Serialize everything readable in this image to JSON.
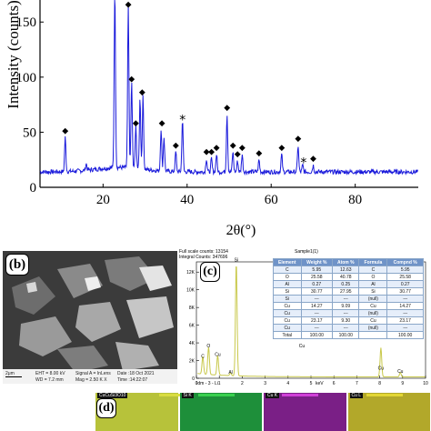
{
  "chart_data": {
    "type": "line",
    "xlabel": "2θ(°)",
    "ylabel": "Intensity (counts)",
    "xlim": [
      5,
      95
    ],
    "ylim": [
      0,
      170
    ],
    "x_ticks": [
      "20",
      "40",
      "60",
      "80"
    ],
    "y_ticks": [
      "0",
      "50",
      "100",
      "150"
    ],
    "line_color": "#1a1adb",
    "baseline": 14,
    "peaks": [
      {
        "x": 11.0,
        "y": 45
      },
      {
        "x": 16.0,
        "y": 20
      },
      {
        "x": 22.8,
        "y": 178
      },
      {
        "x": 26.0,
        "y": 160
      },
      {
        "x": 26.8,
        "y": 92
      },
      {
        "x": 27.8,
        "y": 52
      },
      {
        "x": 28.8,
        "y": 78
      },
      {
        "x": 29.5,
        "y": 80
      },
      {
        "x": 33.8,
        "y": 52
      },
      {
        "x": 34.5,
        "y": 45
      },
      {
        "x": 37.3,
        "y": 32
      },
      {
        "x": 38.9,
        "y": 62
      },
      {
        "x": 44.6,
        "y": 26
      },
      {
        "x": 45.8,
        "y": 26
      },
      {
        "x": 47.0,
        "y": 30
      },
      {
        "x": 49.5,
        "y": 66
      },
      {
        "x": 50.9,
        "y": 32
      },
      {
        "x": 52.0,
        "y": 24
      },
      {
        "x": 53.1,
        "y": 30
      },
      {
        "x": 57.1,
        "y": 25
      },
      {
        "x": 62.5,
        "y": 30
      },
      {
        "x": 66.4,
        "y": 38
      },
      {
        "x": 67.5,
        "y": 20
      },
      {
        "x": 70.0,
        "y": 20
      }
    ],
    "markers": [
      {
        "symbol": "◆",
        "x": 11.0,
        "y": 49
      },
      {
        "symbol": "◆",
        "x": 26.0,
        "y": 164
      },
      {
        "symbol": "◆",
        "x": 26.8,
        "y": 96
      },
      {
        "symbol": "◆",
        "x": 27.8,
        "y": 56
      },
      {
        "symbol": "◆",
        "x": 29.3,
        "y": 84
      },
      {
        "symbol": "◆",
        "x": 34.0,
        "y": 56
      },
      {
        "symbol": "◆",
        "x": 37.3,
        "y": 36
      },
      {
        "symbol": "*",
        "x": 38.9,
        "y": 64
      },
      {
        "symbol": "◆",
        "x": 44.6,
        "y": 30
      },
      {
        "symbol": "◆",
        "x": 45.8,
        "y": 30
      },
      {
        "symbol": "◆",
        "x": 47.0,
        "y": 34
      },
      {
        "symbol": "◆",
        "x": 49.5,
        "y": 70
      },
      {
        "symbol": "◆",
        "x": 50.9,
        "y": 36
      },
      {
        "symbol": "◆",
        "x": 52.0,
        "y": 28
      },
      {
        "symbol": "◆",
        "x": 53.1,
        "y": 34
      },
      {
        "symbol": "◆",
        "x": 57.1,
        "y": 29
      },
      {
        "symbol": "◆",
        "x": 62.5,
        "y": 34
      },
      {
        "symbol": "◆",
        "x": 66.4,
        "y": 42
      },
      {
        "symbol": "*",
        "x": 67.7,
        "y": 25
      },
      {
        "symbol": "◆",
        "x": 70.0,
        "y": 24
      }
    ]
  },
  "sem": {
    "label": "(b)",
    "scale": "2μm",
    "info_1": "EHT = 8.00 kV",
    "info_2": "WD = 7.2 mm",
    "info_3": "Signal A = InLens",
    "info_4": "Mag = 2.50 K X",
    "info_5": "Date :18 Oct 2021",
    "info_6": "Time :14:22:07"
  },
  "eds": {
    "label": "(c)",
    "header_1": "Full scale counts: 13154",
    "header_2": "Integral Counts: 347696",
    "sample": "Sample1(1)",
    "y_ticks": [
      "0",
      "2K",
      "4K",
      "6K",
      "8K",
      "10K",
      "12K"
    ],
    "x_ticks": [
      "0",
      "1",
      "2",
      "3",
      "4",
      "5",
      "6",
      "7",
      "8",
      "9",
      "10"
    ],
    "x_unit": "keV",
    "footer_left": "Idm - 3 - Li",
    "line_color": "#c8c84a",
    "peak_labels": [
      {
        "text": "C",
        "kev": 0.28,
        "y": 2300
      },
      {
        "text": "O",
        "kev": 0.53,
        "y": 3500
      },
      {
        "text": "Cu",
        "kev": 0.93,
        "y": 2500
      },
      {
        "text": "Al",
        "kev": 1.49,
        "y": 500
      },
      {
        "text": "Si",
        "kev": 1.74,
        "y": 13200
      },
      {
        "text": "Cu",
        "kev": 8.05,
        "y": 1000
      },
      {
        "text": "Cu",
        "kev": 8.9,
        "y": 600
      },
      {
        "text": "Cu",
        "kev": 4.6,
        "y": 3500
      }
    ],
    "peaks": [
      {
        "kev": 0.28,
        "y": 2000
      },
      {
        "kev": 0.53,
        "y": 3100
      },
      {
        "kev": 0.93,
        "y": 2200
      },
      {
        "kev": 1.49,
        "y": 300
      },
      {
        "kev": 1.74,
        "y": 12800
      },
      {
        "kev": 4.6,
        "y": 0
      },
      {
        "kev": 8.05,
        "y": 3300
      },
      {
        "kev": 8.9,
        "y": 500
      }
    ],
    "table": {
      "headers": [
        "Element",
        "Weight %",
        "Atom %",
        "Formula",
        "Compnd %"
      ],
      "rows": [
        [
          "C",
          "5.95",
          "12.63",
          "C",
          "5.95"
        ],
        [
          "O",
          "25.58",
          "40.78",
          "O",
          "25.58"
        ],
        [
          "Al",
          "0.27",
          "0.25",
          "Al",
          "0.27"
        ],
        [
          "Si",
          "30.77",
          "27.95",
          "Si",
          "30.77"
        ],
        [
          "Si",
          "---",
          "---",
          "(null)",
          "---"
        ],
        [
          "Cu",
          "14.27",
          "9.09",
          "Cu",
          "14.27"
        ],
        [
          "Cu",
          "---",
          "---",
          "(null)",
          "---"
        ],
        [
          "Cu",
          "23.17",
          "9.30",
          "Cu",
          "23.17"
        ],
        [
          "Cu",
          "---",
          "---",
          "(null)",
          "---"
        ],
        [
          "Total",
          "100.00",
          "100.00",
          "",
          "100.00"
        ]
      ]
    }
  },
  "maps": {
    "label": "(d)",
    "items": [
      {
        "tag": "CuCuSi3O10",
        "color": "#b7c23a",
        "bar": "#d9dc40"
      },
      {
        "tag": "Si K",
        "color": "#1e8f3a",
        "bar": "#39d04f"
      },
      {
        "tag": "Cu K",
        "color": "#7a1f86",
        "bar": "#d040d8"
      },
      {
        "tag": "Cu L",
        "color": "#b2a82a",
        "bar": "#e3d634"
      }
    ]
  }
}
